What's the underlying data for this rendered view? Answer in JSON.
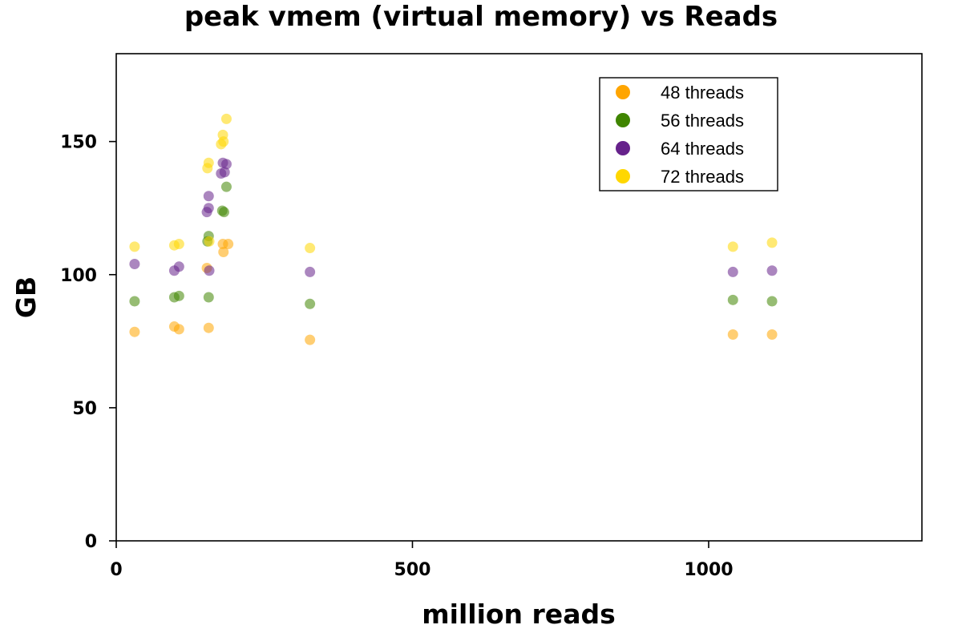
{
  "chart_data": {
    "type": "scatter",
    "title": "peak vmem (virtual memory) vs Reads",
    "xlabel": "million reads",
    "ylabel": "GB",
    "xlim": [
      0,
      1360
    ],
    "ylim": [
      0,
      183
    ],
    "xticks": [
      0,
      500,
      1000
    ],
    "yticks": [
      0,
      50,
      100,
      150
    ],
    "grid": false,
    "legend_position": "top-right",
    "series": [
      {
        "name": "48 threads",
        "color": "#FFA500",
        "points": [
          [
            31,
            78.5
          ],
          [
            98,
            80.5
          ],
          [
            106,
            79.5
          ],
          [
            153,
            102.5
          ],
          [
            156,
            80
          ],
          [
            180,
            111.5
          ],
          [
            181,
            108.5
          ],
          [
            189,
            111.5
          ],
          [
            327,
            75.5
          ],
          [
            1041,
            77.5
          ],
          [
            1107,
            77.5
          ]
        ]
      },
      {
        "name": "56 threads",
        "color": "#3F8500",
        "points": [
          [
            31,
            90
          ],
          [
            98,
            91.5
          ],
          [
            106,
            92
          ],
          [
            154,
            112.5
          ],
          [
            156,
            114.5
          ],
          [
            156,
            91.5
          ],
          [
            179,
            124
          ],
          [
            182,
            123.5
          ],
          [
            186,
            133
          ],
          [
            327,
            89
          ],
          [
            1041,
            90.5
          ],
          [
            1107,
            90
          ]
        ]
      },
      {
        "name": "64 threads",
        "color": "#66228B",
        "points": [
          [
            31,
            104
          ],
          [
            98,
            101.5
          ],
          [
            106,
            103
          ],
          [
            153,
            123.5
          ],
          [
            156,
            125
          ],
          [
            156,
            129.5
          ],
          [
            157,
            101.5
          ],
          [
            177,
            138
          ],
          [
            180,
            142
          ],
          [
            183,
            138.5
          ],
          [
            186,
            141.5
          ],
          [
            327,
            101
          ],
          [
            1041,
            101
          ],
          [
            1107,
            101.5
          ]
        ]
      },
      {
        "name": "72 threads",
        "color": "#FFD700",
        "points": [
          [
            31,
            110.5
          ],
          [
            98,
            111
          ],
          [
            106,
            111.5
          ],
          [
            154,
            140
          ],
          [
            156,
            142
          ],
          [
            157,
            112.5
          ],
          [
            177,
            149
          ],
          [
            180,
            152.5
          ],
          [
            181,
            150
          ],
          [
            186,
            158.5
          ],
          [
            327,
            110
          ],
          [
            1041,
            110.5
          ],
          [
            1107,
            112
          ]
        ]
      }
    ]
  }
}
